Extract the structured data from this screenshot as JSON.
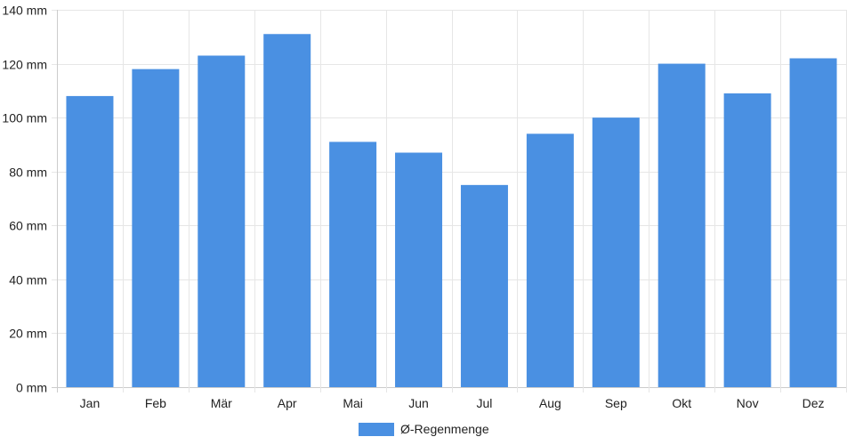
{
  "chart_data": {
    "type": "bar",
    "categories": [
      "Jan",
      "Feb",
      "Mär",
      "Apr",
      "Mai",
      "Jun",
      "Jul",
      "Aug",
      "Sep",
      "Okt",
      "Nov",
      "Dez"
    ],
    "series": [
      {
        "name": "Ø-Regenmenge",
        "values": [
          108,
          118,
          123,
          131,
          91,
          87,
          75,
          94,
          100,
          120,
          109,
          122
        ],
        "color": "#4a90e2"
      }
    ],
    "y_ticks": [
      "0 mm",
      "20 mm",
      "40 mm",
      "60 mm",
      "80 mm",
      "100 mm",
      "120 mm",
      "140 mm"
    ],
    "ylim": [
      0,
      140
    ],
    "title": "",
    "xlabel": "",
    "ylabel": "",
    "grid": true,
    "legend_position": "bottom-center"
  }
}
